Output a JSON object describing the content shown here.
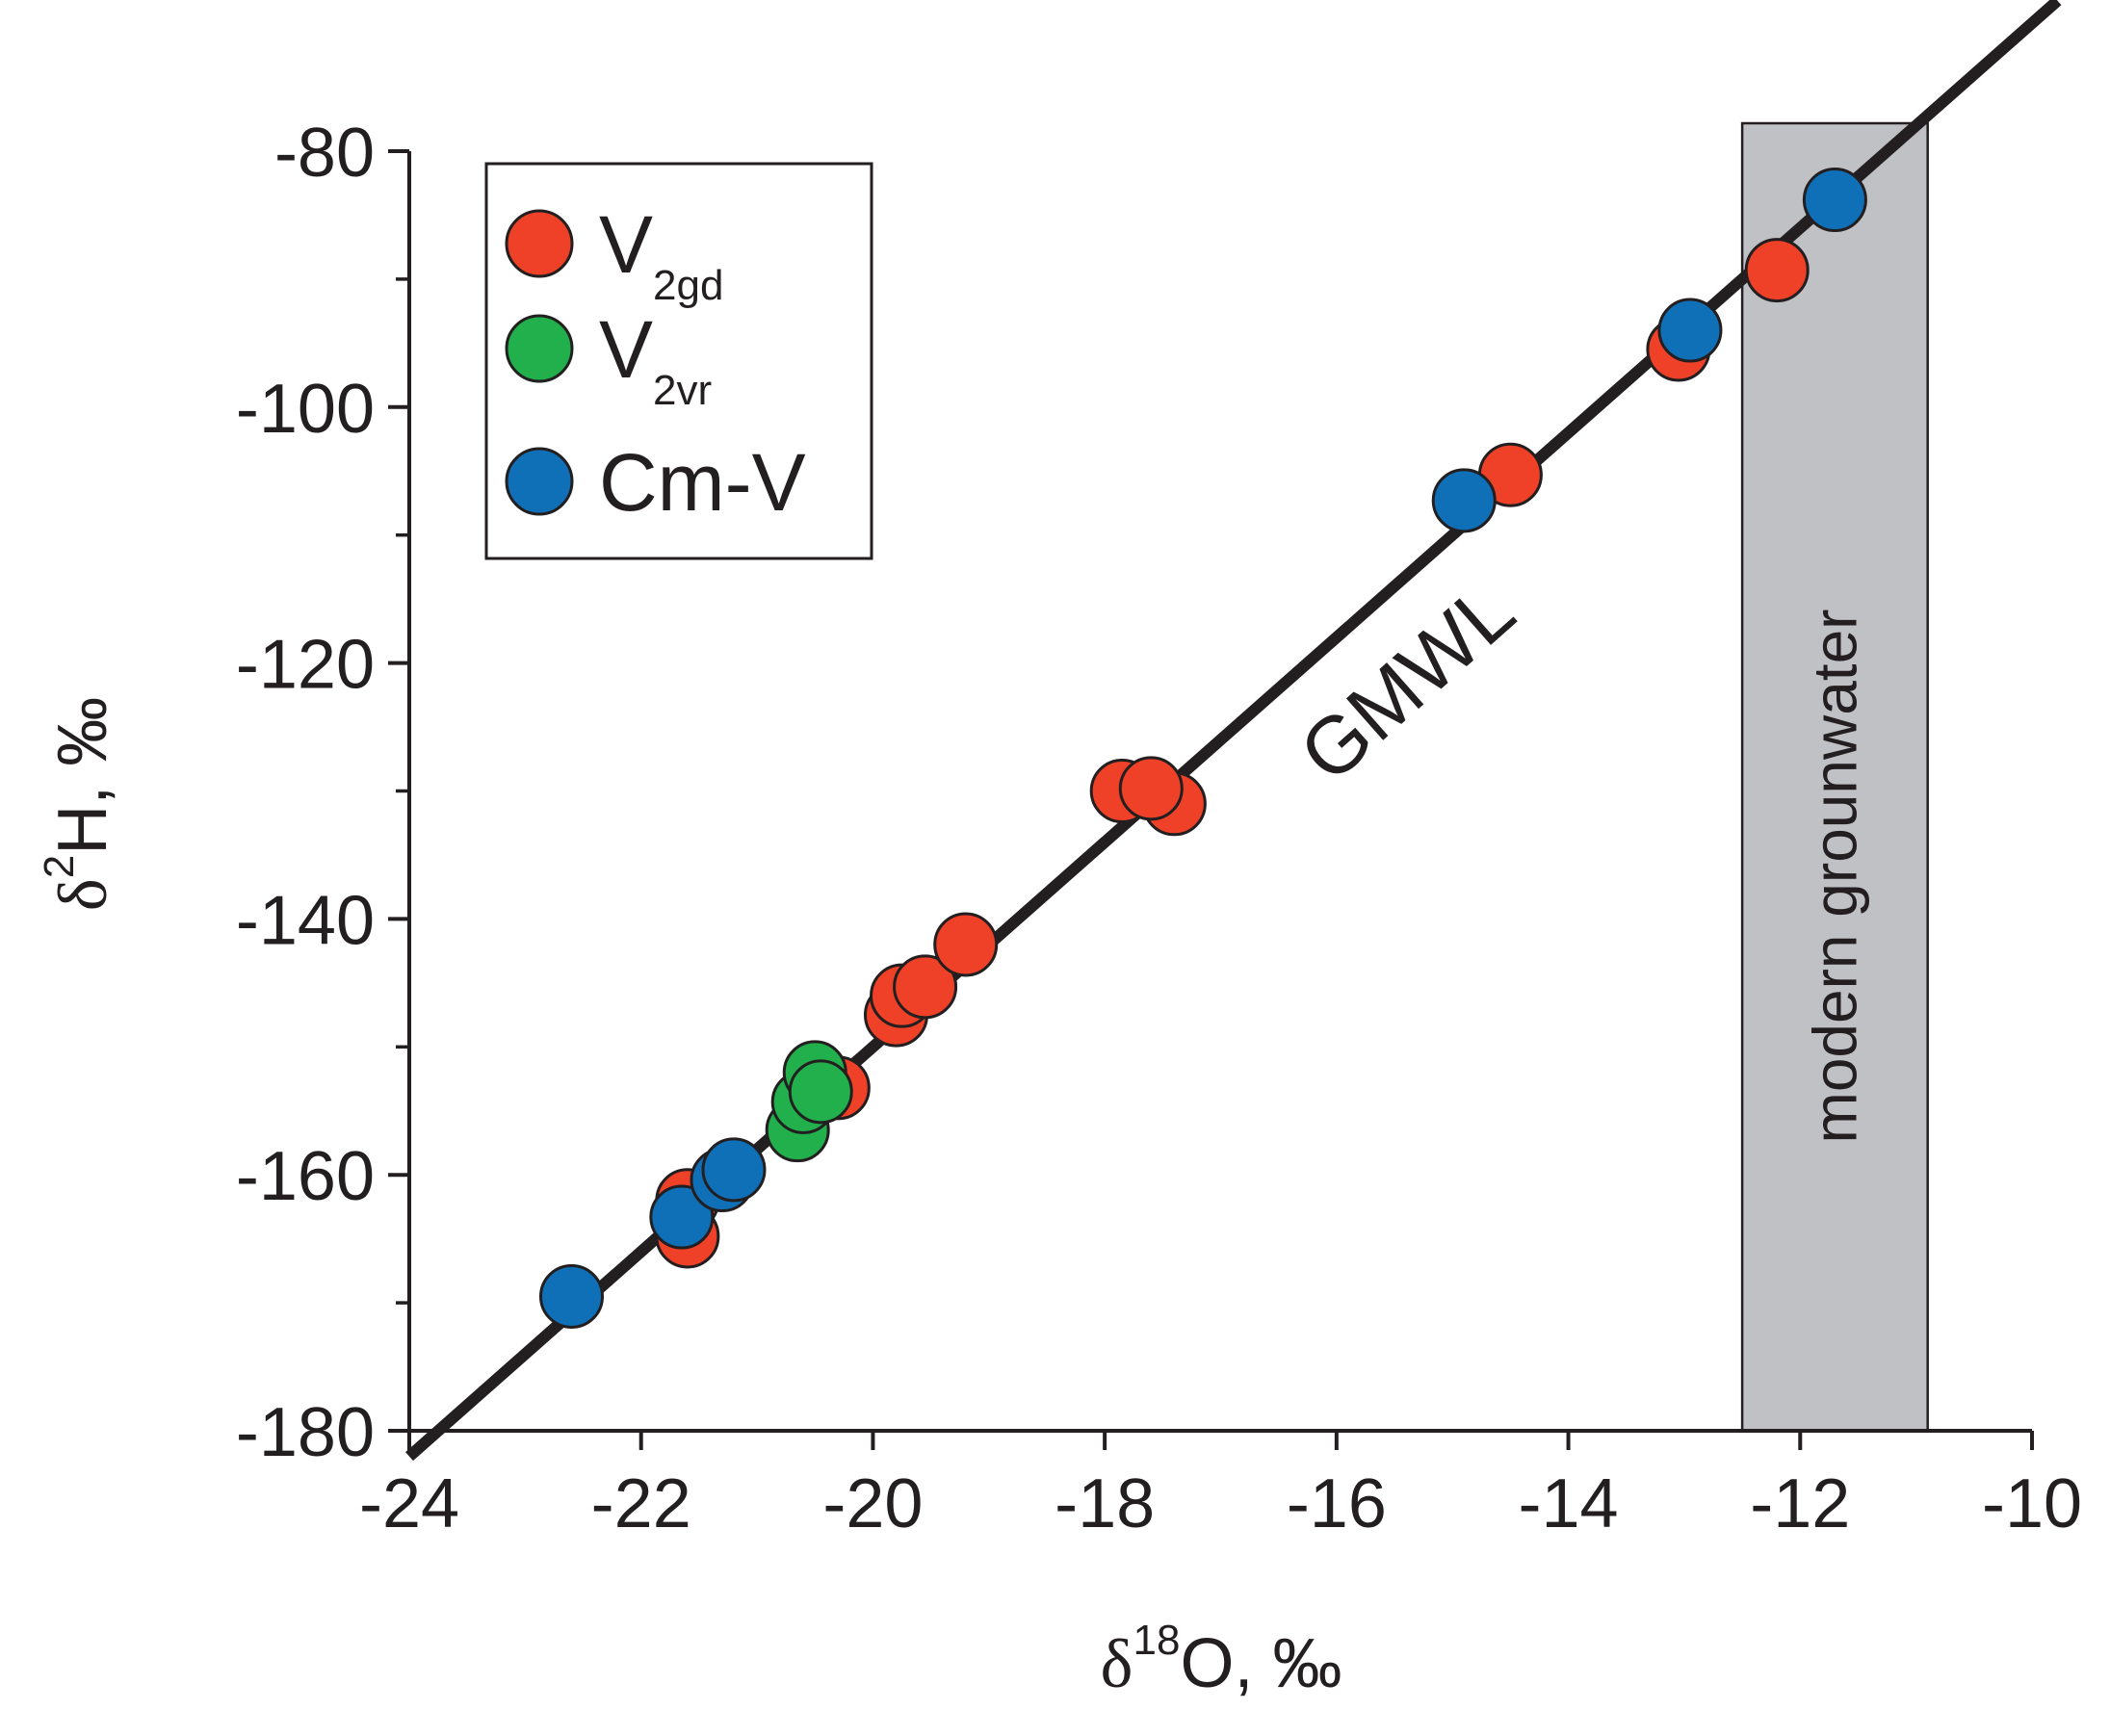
{
  "chart_data": {
    "type": "scatter",
    "xlabel": {
      "symbol": "δ",
      "sup": "18",
      "rest": "O, ‰"
    },
    "ylabel": {
      "symbol": "δ",
      "sup": "2",
      "rest": "H, ‰"
    },
    "xlim": [
      -24,
      -10
    ],
    "ylim": [
      -180,
      -80
    ],
    "x_ticks": [
      -24,
      -22,
      -20,
      -18,
      -16,
      -14,
      -12,
      -10
    ],
    "x_tick_labels": [
      "-24",
      "-22",
      "-20",
      "-18",
      "-16",
      "-14",
      "-12",
      "-10"
    ],
    "y_ticks": [
      -180,
      -160,
      -140,
      -120,
      -100,
      -80
    ],
    "y_tick_labels": [
      "-180",
      "-160",
      "-140",
      "-120",
      "-100",
      "-80"
    ],
    "y_minor_ticks": [
      -170,
      -150,
      -130,
      -110,
      -90
    ],
    "grid": false,
    "legend_position": "top-left",
    "reference_line": {
      "label": "GMWL",
      "slope": 8,
      "intercept": 10
    },
    "band": {
      "label": "modern grounwater",
      "x_range": [
        -12.5,
        -10.9
      ],
      "color": "#c0c1c4"
    },
    "series": [
      {
        "label_main": "V",
        "label_sub": "2gd",
        "color": "#ee4127",
        "points": [
          [
            -21.6,
            -164.8
          ],
          [
            -21.6,
            -162.0
          ],
          [
            -20.3,
            -153.2
          ],
          [
            -19.8,
            -147.5
          ],
          [
            -19.75,
            -146.0
          ],
          [
            -19.55,
            -145.3
          ],
          [
            -19.2,
            -142.0
          ],
          [
            -17.85,
            -130.0
          ],
          [
            -17.4,
            -131.0
          ],
          [
            -17.6,
            -129.8
          ],
          [
            -14.5,
            -105.3
          ],
          [
            -13.05,
            -95.5
          ],
          [
            -12.2,
            -89.3
          ]
        ]
      },
      {
        "label_main": "V",
        "label_sub": "2vr",
        "color": "#21b04b",
        "points": [
          [
            -20.65,
            -156.5
          ],
          [
            -20.6,
            -154.3
          ],
          [
            -20.5,
            -152.0
          ],
          [
            -20.45,
            -153.5
          ]
        ]
      },
      {
        "label_main": "Cm-V",
        "label_sub": "",
        "color": "#0f70b7",
        "points": [
          [
            -22.6,
            -169.5
          ],
          [
            -21.65,
            -163.3
          ],
          [
            -21.3,
            -160.4
          ],
          [
            -21.2,
            -159.6
          ],
          [
            -14.9,
            -107.3
          ],
          [
            -12.95,
            -94.0
          ],
          [
            -11.7,
            -83.8
          ]
        ]
      }
    ]
  }
}
